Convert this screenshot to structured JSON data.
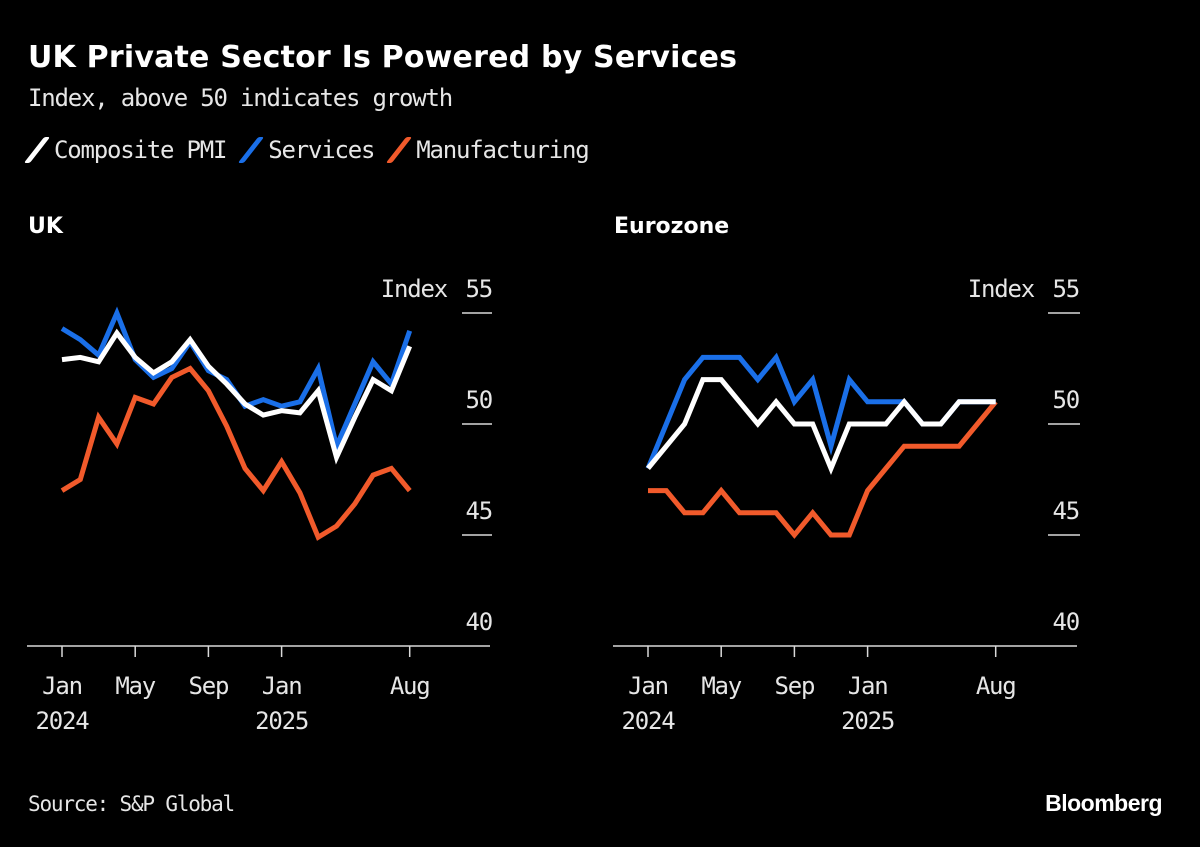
{
  "header": {
    "title": "UK Private Sector Is Powered by Services",
    "subtitle": "Index, above 50 indicates growth"
  },
  "legend": [
    {
      "label": "Composite PMI",
      "color": "#ffffff"
    },
    {
      "label": "Services",
      "color": "#1a6fe8"
    },
    {
      "label": "Manufacturing",
      "color": "#f15a2b"
    }
  ],
  "footer": {
    "source": "Source: S&P Global",
    "brand": "Bloomberg"
  },
  "chart_data": [
    {
      "type": "line",
      "title": "UK",
      "ylabel": "Index",
      "ylim": [
        40,
        55
      ],
      "yticks": [
        40,
        45,
        50,
        55
      ],
      "xticks": [
        {
          "index": 0,
          "label": "Jan",
          "sublabel": "2024"
        },
        {
          "index": 4,
          "label": "May",
          "sublabel": ""
        },
        {
          "index": 8,
          "label": "Sep",
          "sublabel": ""
        },
        {
          "index": 12,
          "label": "Jan",
          "sublabel": "2025"
        },
        {
          "index": 19,
          "label": "Aug",
          "sublabel": ""
        }
      ],
      "x": [
        "2024-01",
        "2024-02",
        "2024-03",
        "2024-04",
        "2024-05",
        "2024-06",
        "2024-07",
        "2024-08",
        "2024-09",
        "2024-10",
        "2024-11",
        "2024-12",
        "2025-01",
        "2025-02",
        "2025-03",
        "2025-04",
        "2025-05",
        "2025-06",
        "2025-07",
        "2025-08"
      ],
      "series": [
        {
          "name": "Manufacturing",
          "color": "#f15a2b",
          "values": [
            47.0,
            47.5,
            50.3,
            49.1,
            51.2,
            50.9,
            52.1,
            52.5,
            51.5,
            49.9,
            48.0,
            47.0,
            48.3,
            46.9,
            44.9,
            45.4,
            46.4,
            47.7,
            48.0,
            47.0
          ]
        },
        {
          "name": "Services",
          "color": "#1a6fe8",
          "values": [
            54.3,
            53.8,
            53.1,
            55.0,
            52.9,
            52.1,
            52.5,
            53.7,
            52.4,
            52.0,
            50.8,
            51.1,
            50.8,
            51.0,
            52.5,
            49.0,
            50.9,
            52.8,
            51.8,
            54.2
          ]
        },
        {
          "name": "Composite PMI",
          "color": "#ffffff",
          "values": [
            52.9,
            53.0,
            52.8,
            54.1,
            53.0,
            52.3,
            52.8,
            53.8,
            52.6,
            51.8,
            50.9,
            50.4,
            50.6,
            50.5,
            51.5,
            48.5,
            50.3,
            52.0,
            51.5,
            53.5
          ]
        }
      ]
    },
    {
      "type": "line",
      "title": "Eurozone",
      "ylabel": "Index",
      "ylim": [
        40,
        55
      ],
      "yticks": [
        40,
        45,
        50,
        55
      ],
      "xticks": [
        {
          "index": 0,
          "label": "Jan",
          "sublabel": "2024"
        },
        {
          "index": 4,
          "label": "May",
          "sublabel": ""
        },
        {
          "index": 8,
          "label": "Sep",
          "sublabel": ""
        },
        {
          "index": 12,
          "label": "Jan",
          "sublabel": "2025"
        },
        {
          "index": 19,
          "label": "Aug",
          "sublabel": ""
        }
      ],
      "x": [
        "2024-01",
        "2024-02",
        "2024-03",
        "2024-04",
        "2024-05",
        "2024-06",
        "2024-07",
        "2024-08",
        "2024-09",
        "2024-10",
        "2024-11",
        "2024-12",
        "2025-01",
        "2025-02",
        "2025-03",
        "2025-04",
        "2025-05",
        "2025-06",
        "2025-07",
        "2025-08"
      ],
      "series": [
        {
          "name": "Manufacturing",
          "color": "#f15a2b",
          "values": [
            47,
            47,
            46,
            46,
            47,
            46,
            46,
            46,
            45,
            46,
            45,
            45,
            47,
            48,
            49,
            49,
            49,
            49,
            50,
            51
          ]
        },
        {
          "name": "Services",
          "color": "#1a6fe8",
          "values": [
            48,
            50,
            52,
            53,
            53,
            53,
            52,
            53,
            51,
            52,
            49,
            52,
            51,
            51,
            51,
            50,
            50,
            51,
            51,
            51
          ]
        },
        {
          "name": "Composite PMI",
          "color": "#ffffff",
          "values": [
            48,
            49,
            50,
            52,
            52,
            51,
            50,
            51,
            50,
            50,
            48,
            50,
            50,
            50,
            51,
            50,
            50,
            51,
            51,
            51
          ]
        }
      ]
    }
  ]
}
